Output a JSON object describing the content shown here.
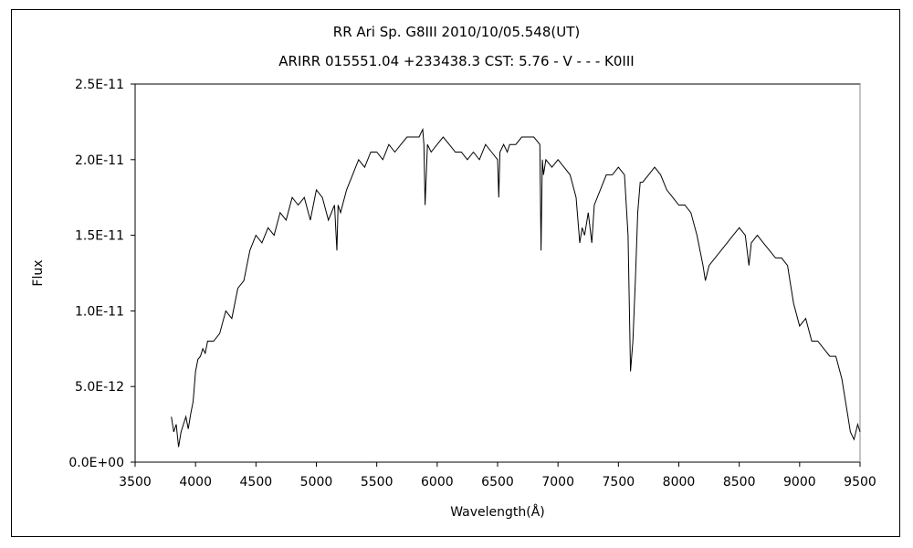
{
  "chart_data": {
    "type": "line",
    "title": "RR Ari    Sp. G8III    2010/10/05.548(UT)",
    "subtitle": "ARIRR 015551.04 +233438.3 CST: 5.76 - V - - - K0III",
    "xlabel": "Wavelength(Å)",
    "ylabel": "Flux",
    "xlim": [
      3500,
      9500
    ],
    "ylim": [
      0,
      2.5e-11
    ],
    "x_ticks": [
      3500,
      4000,
      4500,
      5000,
      5500,
      6000,
      6500,
      7000,
      7500,
      8000,
      8500,
      9000,
      9500
    ],
    "x_tick_labels": [
      "3500",
      "4000",
      "4500",
      "5000",
      "5500",
      "6000",
      "6500",
      "7000",
      "7500",
      "8000",
      "8500",
      "9000",
      "9500"
    ],
    "y_ticks": [
      0,
      5e-12,
      1e-11,
      1.5e-11,
      2e-11,
      2.5e-11
    ],
    "y_tick_labels": [
      "0.0E+00",
      "5.0E-12",
      "1.0E-11",
      "1.5E-11",
      "2.0E-11",
      "2.5E-11"
    ],
    "grid": false,
    "series": [
      {
        "color": "#000000",
        "x": [
          3800,
          3820,
          3840,
          3860,
          3880,
          3900,
          3920,
          3940,
          3960,
          3980,
          4000,
          4020,
          4040,
          4060,
          4080,
          4100,
          4150,
          4200,
          4250,
          4300,
          4350,
          4400,
          4450,
          4500,
          4550,
          4600,
          4650,
          4700,
          4750,
          4800,
          4850,
          4900,
          4950,
          5000,
          5050,
          5100,
          5150,
          5170,
          5180,
          5200,
          5250,
          5300,
          5350,
          5400,
          5450,
          5500,
          5550,
          5600,
          5650,
          5700,
          5750,
          5800,
          5850,
          5880,
          5890,
          5900,
          5920,
          5950,
          6000,
          6050,
          6100,
          6150,
          6200,
          6250,
          6300,
          6350,
          6400,
          6450,
          6500,
          6510,
          6520,
          6550,
          6580,
          6600,
          6650,
          6700,
          6750,
          6800,
          6850,
          6860,
          6870,
          6880,
          6890,
          6900,
          6950,
          7000,
          7050,
          7100,
          7150,
          7180,
          7200,
          7220,
          7250,
          7280,
          7300,
          7350,
          7400,
          7450,
          7500,
          7550,
          7580,
          7600,
          7620,
          7640,
          7660,
          7680,
          7700,
          7750,
          7800,
          7850,
          7900,
          7950,
          8000,
          8050,
          8100,
          8150,
          8200,
          8220,
          8250,
          8300,
          8350,
          8400,
          8450,
          8500,
          8550,
          8580,
          8600,
          8650,
          8700,
          8750,
          8800,
          8850,
          8900,
          8920,
          8950,
          9000,
          9050,
          9100,
          9150,
          9200,
          9250,
          9300,
          9350,
          9400,
          9420,
          9450,
          9480,
          9500
        ],
        "y": [
          3e-12,
          2e-12,
          2.5e-12,
          1e-12,
          2e-12,
          2.5e-12,
          3e-12,
          2.2e-12,
          3.2e-12,
          4e-12,
          6e-12,
          6.8e-12,
          7e-12,
          7.5e-12,
          7.2e-12,
          8e-12,
          8e-12,
          8.5e-12,
          1e-11,
          9.5e-12,
          1.15e-11,
          1.2e-11,
          1.4e-11,
          1.5e-11,
          1.45e-11,
          1.55e-11,
          1.5e-11,
          1.65e-11,
          1.6e-11,
          1.75e-11,
          1.7e-11,
          1.75e-11,
          1.6e-11,
          1.8e-11,
          1.75e-11,
          1.6e-11,
          1.7e-11,
          1.4e-11,
          1.7e-11,
          1.65e-11,
          1.8e-11,
          1.9e-11,
          2e-11,
          1.95e-11,
          2.05e-11,
          2.05e-11,
          2e-11,
          2.1e-11,
          2.05e-11,
          2.1e-11,
          2.15e-11,
          2.15e-11,
          2.15e-11,
          2.2e-11,
          2.1e-11,
          1.7e-11,
          2.1e-11,
          2.05e-11,
          2.1e-11,
          2.15e-11,
          2.1e-11,
          2.05e-11,
          2.05e-11,
          2e-11,
          2.05e-11,
          2e-11,
          2.1e-11,
          2.05e-11,
          2e-11,
          1.75e-11,
          2.05e-11,
          2.1e-11,
          2.05e-11,
          2.1e-11,
          2.1e-11,
          2.15e-11,
          2.15e-11,
          2.15e-11,
          2.1e-11,
          1.4e-11,
          2e-11,
          1.9e-11,
          1.95e-11,
          2e-11,
          1.95e-11,
          2e-11,
          1.95e-11,
          1.9e-11,
          1.75e-11,
          1.45e-11,
          1.55e-11,
          1.5e-11,
          1.65e-11,
          1.45e-11,
          1.7e-11,
          1.8e-11,
          1.9e-11,
          1.9e-11,
          1.95e-11,
          1.9e-11,
          1.5e-11,
          6e-12,
          8e-12,
          1.2e-11,
          1.65e-11,
          1.85e-11,
          1.85e-11,
          1.9e-11,
          1.95e-11,
          1.9e-11,
          1.8e-11,
          1.75e-11,
          1.7e-11,
          1.7e-11,
          1.65e-11,
          1.5e-11,
          1.3e-11,
          1.2e-11,
          1.3e-11,
          1.35e-11,
          1.4e-11,
          1.45e-11,
          1.5e-11,
          1.55e-11,
          1.5e-11,
          1.3e-11,
          1.45e-11,
          1.5e-11,
          1.45e-11,
          1.4e-11,
          1.35e-11,
          1.35e-11,
          1.3e-11,
          1.2e-11,
          1.05e-11,
          9e-12,
          9.5e-12,
          8e-12,
          8e-12,
          7.5e-12,
          7e-12,
          7e-12,
          5.5e-12,
          3e-12,
          2e-12,
          1.5e-12,
          2.5e-12,
          2e-12
        ]
      }
    ]
  }
}
